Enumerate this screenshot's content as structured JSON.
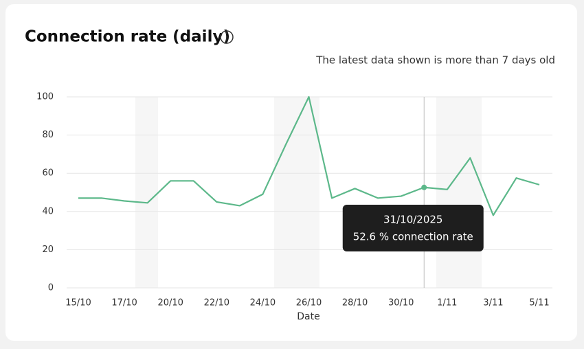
{
  "chart_data": {
    "type": "line",
    "title": "Connection rate (daily)",
    "subtitle": "The latest data shown is more than 7 days old",
    "x_label": "Date",
    "categories": [
      "15/10",
      null,
      "17/10",
      null,
      "20/10",
      null,
      "22/10",
      null,
      "24/10",
      null,
      "26/10",
      null,
      "28/10",
      null,
      "30/10",
      null,
      "1/11",
      null,
      "3/11",
      null,
      "5/11"
    ],
    "series": [
      {
        "name": "connection rate",
        "color": "#5cb88a",
        "values": [
          47,
          47,
          45.5,
          44.5,
          56,
          56,
          45,
          43,
          49,
          75,
          100,
          47,
          52,
          47,
          48,
          52.6,
          51.5,
          68,
          38,
          57.5,
          54
        ]
      }
    ],
    "ylim": [
      0,
      100
    ],
    "yticks": [
      0,
      20,
      40,
      60,
      80,
      100
    ],
    "grid": true,
    "tooltip": {
      "title": "31/10/2025",
      "text": "52.6 % connection rate"
    }
  }
}
